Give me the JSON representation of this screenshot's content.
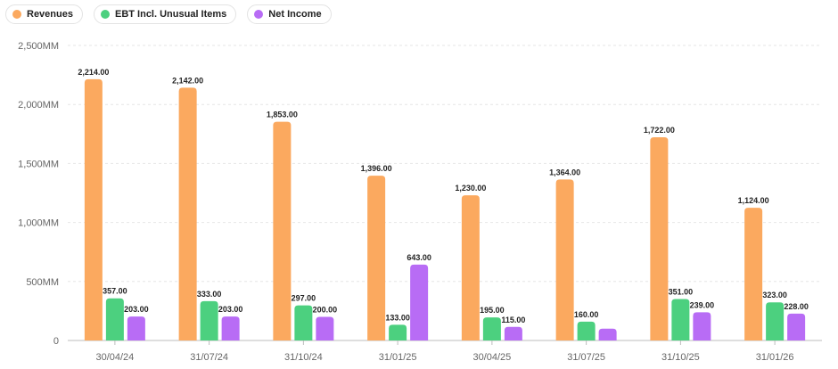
{
  "legend": {
    "items": [
      {
        "label": "Revenues",
        "color": "#fba95f"
      },
      {
        "label": "EBT Incl. Unusual Items",
        "color": "#4cd07f"
      },
      {
        "label": "Net Income",
        "color": "#b86cf5"
      }
    ]
  },
  "chart_data": {
    "type": "bar",
    "title": "",
    "xlabel": "",
    "ylabel": "",
    "ylim": [
      0,
      2500
    ],
    "y_ticks": [
      0,
      500,
      1000,
      1500,
      2000,
      2500
    ],
    "y_tick_labels": [
      "0",
      "500MM",
      "1,000MM",
      "1,500MM",
      "2,000MM",
      "2,500MM"
    ],
    "grid": "horizontal dashed",
    "legend_position": "top-left",
    "categories": [
      "30/04/24",
      "31/07/24",
      "31/10/24",
      "31/01/25",
      "30/04/25",
      "31/07/25",
      "31/10/25",
      "31/01/26"
    ],
    "series": [
      {
        "name": "Revenues",
        "color": "#fba95f",
        "values": [
          2214,
          2142,
          1853,
          1396,
          1230,
          1364,
          1722,
          1124
        ],
        "labels": [
          "2,214.00",
          "2,142.00",
          "1,853.00",
          "1,396.00",
          "1,230.00",
          "1,364.00",
          "1,722.00",
          "1,124.00"
        ]
      },
      {
        "name": "EBT Incl. Unusual Items",
        "color": "#4cd07f",
        "values": [
          357,
          333,
          297,
          133,
          195,
          160,
          351,
          323
        ],
        "labels": [
          "357.00",
          "333.00",
          "297.00",
          "133.00",
          "195.00",
          "160.00",
          "351.00",
          "323.00"
        ]
      },
      {
        "name": "Net Income",
        "color": "#b86cf5",
        "values": [
          203,
          203,
          200,
          643,
          115,
          100,
          239,
          228
        ],
        "labels": [
          "203.00",
          "203.00",
          "200.00",
          "643.00",
          "115.00",
          "",
          "239.00",
          "228.00"
        ]
      }
    ]
  }
}
